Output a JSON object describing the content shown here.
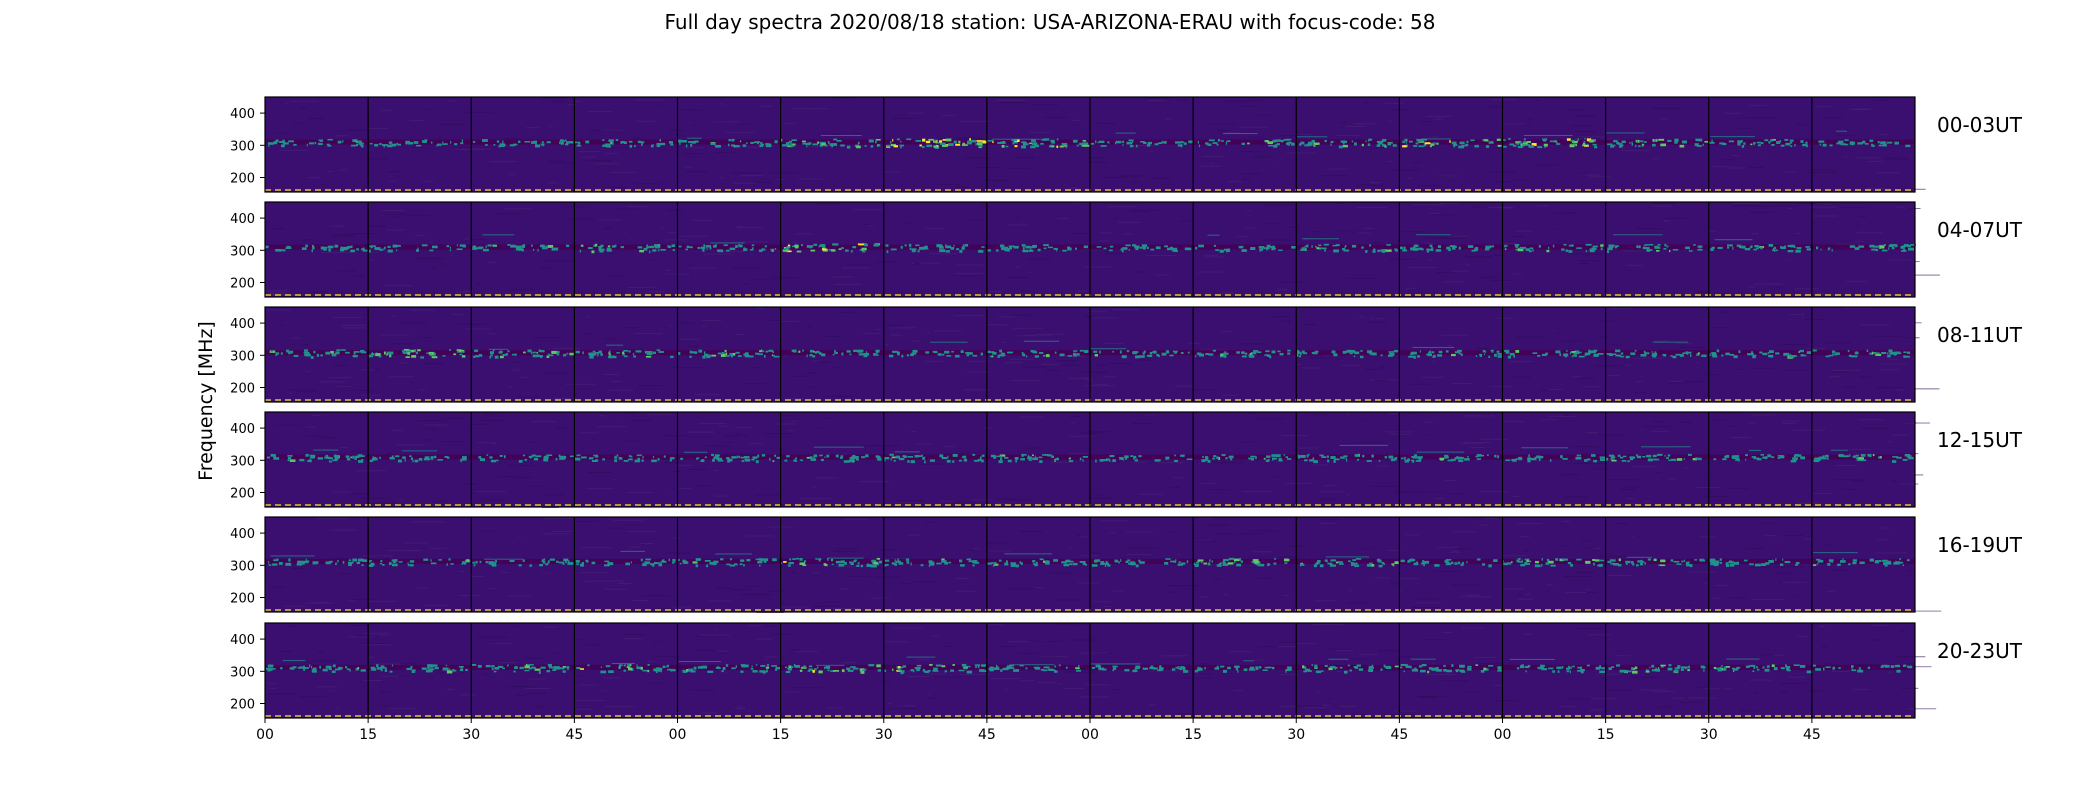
{
  "chart_data": {
    "type": "heatmap",
    "title": "Full day spectra 2020/08/18 station: USA-ARIZONA-ERAU with focus-code: 58",
    "ylabel": "Frequency [MHz]",
    "xlabel": "",
    "y_ticks": [
      "400",
      "300",
      "200"
    ],
    "y_tick_values": [
      400,
      300,
      200
    ],
    "ylim": [
      155,
      450
    ],
    "x_ticks": [
      "00",
      "15",
      "30",
      "45",
      "00",
      "15",
      "30",
      "45",
      "00",
      "15",
      "30",
      "45",
      "00",
      "15",
      "30",
      "45"
    ],
    "minutes_per_block": 15,
    "blocks_per_row": 16,
    "rows": [
      {
        "label": "00-03UT",
        "signal_freq_mhz": 310,
        "block_intensity": [
          0.55,
          0.45,
          0.5,
          0.55,
          0.6,
          0.7,
          0.95,
          0.8,
          0.55,
          0.6,
          0.65,
          0.75,
          0.9,
          0.7,
          0.6,
          0.45
        ]
      },
      {
        "label": "04-07UT",
        "signal_freq_mhz": 310,
        "block_intensity": [
          0.5,
          0.45,
          0.55,
          0.65,
          0.6,
          0.85,
          0.6,
          0.5,
          0.45,
          0.45,
          0.6,
          0.5,
          0.55,
          0.6,
          0.55,
          0.55
        ]
      },
      {
        "label": "08-11UT",
        "signal_freq_mhz": 308,
        "block_intensity": [
          0.65,
          0.75,
          0.7,
          0.6,
          0.7,
          0.55,
          0.45,
          0.55,
          0.5,
          0.55,
          0.5,
          0.6,
          0.55,
          0.55,
          0.6,
          0.6
        ]
      },
      {
        "label": "12-15UT",
        "signal_freq_mhz": 310,
        "block_intensity": [
          0.7,
          0.5,
          0.45,
          0.5,
          0.6,
          0.6,
          0.65,
          0.6,
          0.45,
          0.55,
          0.6,
          0.55,
          0.5,
          0.6,
          0.55,
          0.6
        ]
      },
      {
        "label": "16-19UT",
        "signal_freq_mhz": 312,
        "block_intensity": [
          0.5,
          0.55,
          0.5,
          0.55,
          0.6,
          0.7,
          0.55,
          0.6,
          0.55,
          0.7,
          0.65,
          0.55,
          0.65,
          0.6,
          0.55,
          0.6
        ]
      },
      {
        "label": "20-23UT",
        "signal_freq_mhz": 312,
        "block_intensity": [
          0.55,
          0.6,
          0.7,
          0.7,
          0.65,
          0.7,
          0.75,
          0.55,
          0.55,
          0.5,
          0.6,
          0.7,
          0.55,
          0.7,
          0.6,
          0.45
        ]
      }
    ],
    "colormap": [
      "#3b0f70",
      "#440154",
      "#21918c",
      "#5ec962",
      "#fde725"
    ],
    "grid": false,
    "legend": "none"
  }
}
